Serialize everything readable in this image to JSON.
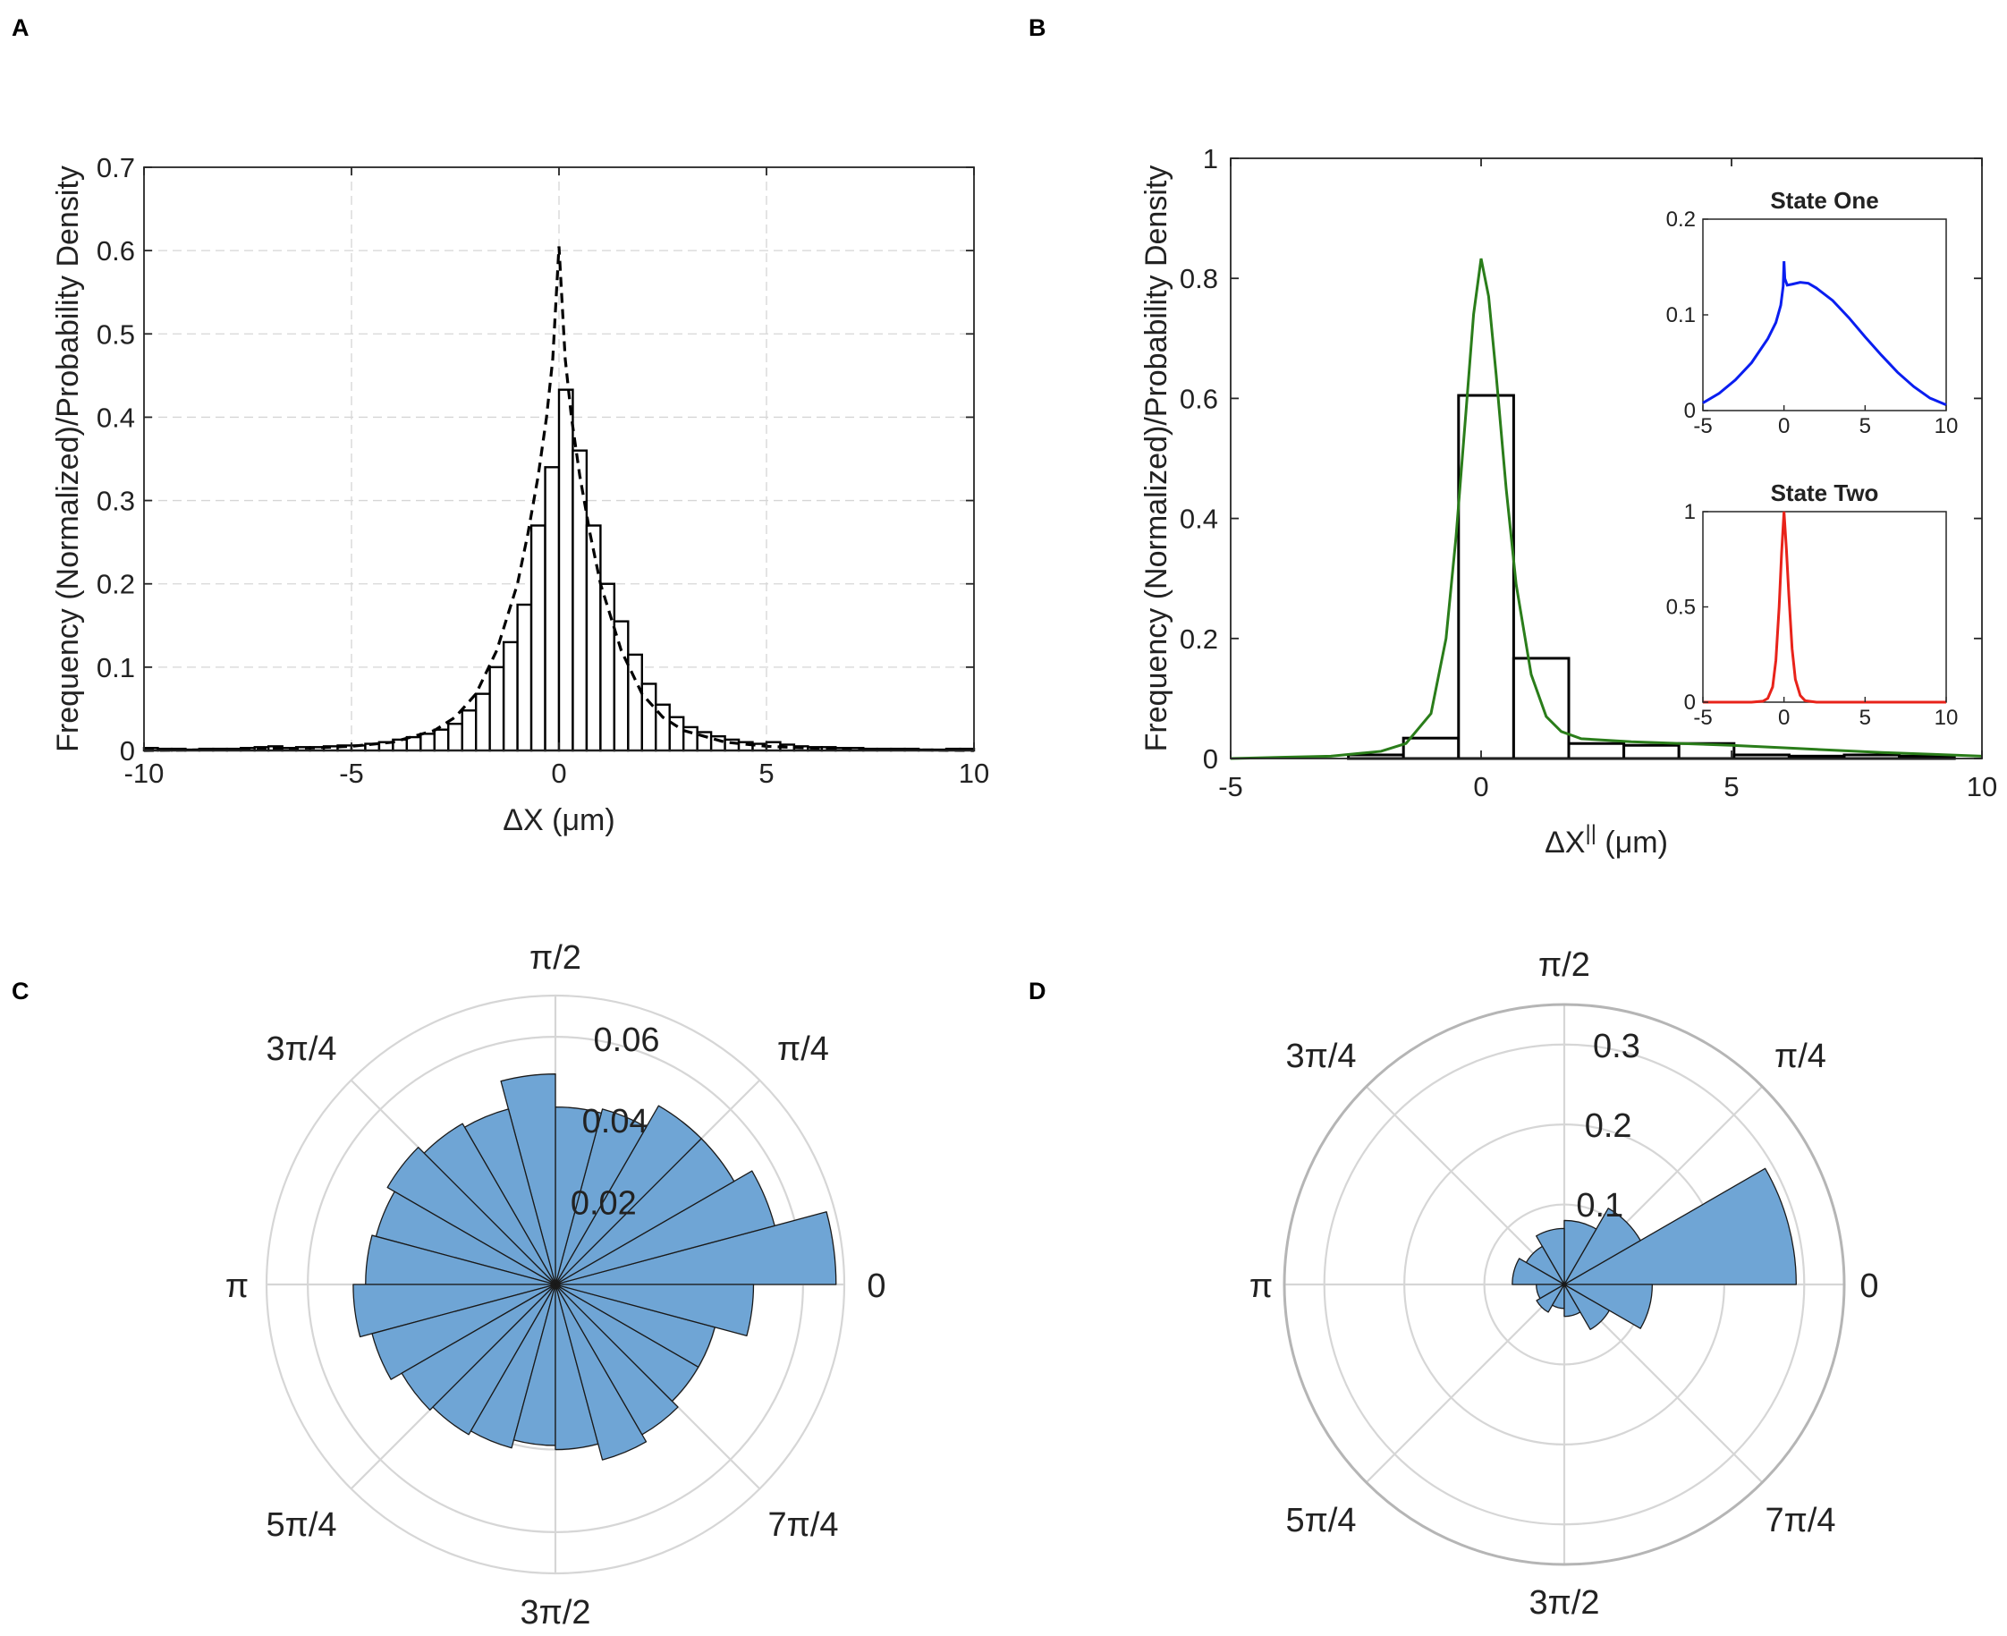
{
  "panel_labels": [
    "A",
    "B",
    "C",
    "D"
  ],
  "colors": {
    "dashed_fit": "#000000",
    "green_fit": "#2a7d1a",
    "state_one": "#0a1ef0",
    "state_two": "#e8231a",
    "rose_fill": "#6fa5d5",
    "grid": "#d6d6d6"
  },
  "chart_data": [
    {
      "panel": "A",
      "type": "bar",
      "title": "",
      "xlabel": "ΔX (μm)",
      "ylabel": "Frequency (Normalized)/Probability Density",
      "xlim": [
        -10,
        10
      ],
      "ylim": [
        0,
        0.7
      ],
      "xticks": [
        -10,
        -5,
        0,
        5,
        10
      ],
      "yticks": [
        0,
        0.1,
        0.2,
        0.3,
        0.4,
        0.5,
        0.6,
        0.7
      ],
      "xtick_labels": [
        "-10",
        "-5",
        "0",
        "5",
        "10"
      ],
      "ytick_labels": [
        "0",
        "0.1",
        "0.2",
        "0.3",
        "0.4",
        "0.5",
        "0.6",
        "0.7"
      ],
      "grid": true,
      "bin_width": 0.333,
      "bins": [
        {
          "x": -10.0,
          "v": 0.003
        },
        {
          "x": -9.667,
          "v": 0.002
        },
        {
          "x": -9.333,
          "v": 0.002
        },
        {
          "x": -9.0,
          "v": 0.001
        },
        {
          "x": -8.667,
          "v": 0.002
        },
        {
          "x": -8.333,
          "v": 0.002
        },
        {
          "x": -8.0,
          "v": 0.002
        },
        {
          "x": -7.667,
          "v": 0.003
        },
        {
          "x": -7.333,
          "v": 0.004
        },
        {
          "x": -7.0,
          "v": 0.005
        },
        {
          "x": -6.667,
          "v": 0.003
        },
        {
          "x": -6.333,
          "v": 0.004
        },
        {
          "x": -6.0,
          "v": 0.004
        },
        {
          "x": -5.667,
          "v": 0.005
        },
        {
          "x": -5.333,
          "v": 0.006
        },
        {
          "x": -5.0,
          "v": 0.006
        },
        {
          "x": -4.667,
          "v": 0.008
        },
        {
          "x": -4.333,
          "v": 0.01
        },
        {
          "x": -4.0,
          "v": 0.013
        },
        {
          "x": -3.667,
          "v": 0.016
        },
        {
          "x": -3.333,
          "v": 0.02
        },
        {
          "x": -3.0,
          "v": 0.025
        },
        {
          "x": -2.667,
          "v": 0.032
        },
        {
          "x": -2.333,
          "v": 0.048
        },
        {
          "x": -2.0,
          "v": 0.068
        },
        {
          "x": -1.667,
          "v": 0.1
        },
        {
          "x": -1.333,
          "v": 0.13
        },
        {
          "x": -1.0,
          "v": 0.175
        },
        {
          "x": -0.667,
          "v": 0.27
        },
        {
          "x": -0.333,
          "v": 0.34
        },
        {
          "x": 0.0,
          "v": 0.433
        },
        {
          "x": 0.333,
          "v": 0.36
        },
        {
          "x": 0.667,
          "v": 0.27
        },
        {
          "x": 1.0,
          "v": 0.2
        },
        {
          "x": 1.333,
          "v": 0.155
        },
        {
          "x": 1.667,
          "v": 0.115
        },
        {
          "x": 2.0,
          "v": 0.08
        },
        {
          "x": 2.333,
          "v": 0.055
        },
        {
          "x": 2.667,
          "v": 0.04
        },
        {
          "x": 3.0,
          "v": 0.028
        },
        {
          "x": 3.333,
          "v": 0.022
        },
        {
          "x": 3.667,
          "v": 0.017
        },
        {
          "x": 4.0,
          "v": 0.013
        },
        {
          "x": 4.333,
          "v": 0.01
        },
        {
          "x": 4.667,
          "v": 0.008
        },
        {
          "x": 5.0,
          "v": 0.01
        },
        {
          "x": 5.333,
          "v": 0.007
        },
        {
          "x": 5.667,
          "v": 0.005
        },
        {
          "x": 6.0,
          "v": 0.004
        },
        {
          "x": 6.333,
          "v": 0.004
        },
        {
          "x": 6.667,
          "v": 0.003
        },
        {
          "x": 7.0,
          "v": 0.003
        },
        {
          "x": 7.333,
          "v": 0.002
        },
        {
          "x": 7.667,
          "v": 0.002
        },
        {
          "x": 8.0,
          "v": 0.002
        },
        {
          "x": 8.333,
          "v": 0.002
        },
        {
          "x": 8.667,
          "v": 0.001
        },
        {
          "x": 9.0,
          "v": 0.001
        },
        {
          "x": 9.333,
          "v": 0.002
        },
        {
          "x": 9.667,
          "v": 0.002
        }
      ],
      "series": [
        {
          "name": "probability density fit",
          "style": "dashed",
          "x": [
            -10,
            -8,
            -6,
            -5,
            -4,
            -3,
            -2.5,
            -2,
            -1.5,
            -1,
            -0.75,
            -0.5,
            -0.3,
            -0.15,
            -0.05,
            0,
            0.05,
            0.15,
            0.3,
            0.5,
            0.75,
            1,
            1.5,
            2,
            2.5,
            3,
            4,
            5,
            6,
            8,
            10
          ],
          "y": [
            0.0,
            0.001,
            0.003,
            0.005,
            0.01,
            0.024,
            0.04,
            0.068,
            0.12,
            0.2,
            0.26,
            0.33,
            0.4,
            0.47,
            0.56,
            0.605,
            0.56,
            0.47,
            0.4,
            0.33,
            0.26,
            0.2,
            0.12,
            0.068,
            0.04,
            0.024,
            0.01,
            0.005,
            0.003,
            0.001,
            0.0
          ]
        }
      ]
    },
    {
      "panel": "B",
      "type": "bar",
      "title": "",
      "xlabel": "ΔX",
      "xlabel_sup": "||",
      "xlabel_unit": "(μm)",
      "ylabel": "Frequency (Normalized)/Probability Density",
      "xlim": [
        -5,
        10
      ],
      "ylim": [
        0,
        1
      ],
      "xticks": [
        -5,
        0,
        5,
        10
      ],
      "yticks": [
        0,
        0.2,
        0.4,
        0.6,
        0.8,
        1
      ],
      "xtick_labels": [
        "-5",
        "0",
        "5",
        "10"
      ],
      "ytick_labels": [
        "0",
        "0.2",
        "0.4",
        "0.6",
        "0.8",
        "1"
      ],
      "grid": false,
      "bin_width": 1.1,
      "bins": [
        {
          "x": -2.65,
          "v": 0.006
        },
        {
          "x": -1.55,
          "v": 0.034
        },
        {
          "x": -0.45,
          "v": 0.605
        },
        {
          "x": 0.65,
          "v": 0.167
        },
        {
          "x": 1.75,
          "v": 0.025
        },
        {
          "x": 2.85,
          "v": 0.022
        },
        {
          "x": 3.95,
          "v": 0.025
        },
        {
          "x": 5.05,
          "v": 0.006
        },
        {
          "x": 6.15,
          "v": 0.004
        },
        {
          "x": 7.25,
          "v": 0.006
        },
        {
          "x": 8.35,
          "v": 0.004
        }
      ],
      "series": [
        {
          "name": "mixture density",
          "color": "#2a7d1a",
          "x": [
            -5,
            -4,
            -3,
            -2,
            -1.5,
            -1,
            -0.7,
            -0.5,
            -0.3,
            -0.15,
            0,
            0.15,
            0.3,
            0.5,
            0.7,
            1,
            1.3,
            1.6,
            2,
            3,
            4,
            5,
            6,
            7,
            8,
            9,
            10
          ],
          "y": [
            0.0,
            0.002,
            0.004,
            0.012,
            0.025,
            0.075,
            0.2,
            0.37,
            0.58,
            0.74,
            0.833,
            0.77,
            0.64,
            0.45,
            0.29,
            0.14,
            0.07,
            0.045,
            0.033,
            0.028,
            0.025,
            0.022,
            0.018,
            0.014,
            0.01,
            0.007,
            0.004
          ]
        }
      ],
      "insets": [
        {
          "title": "State One",
          "type": "line",
          "color": "#0a1ef0",
          "xlim": [
            -5,
            10
          ],
          "ylim": [
            0,
            0.2
          ],
          "xticks": [
            -5,
            0,
            5,
            10
          ],
          "yticks": [
            0,
            0.1,
            0.2
          ],
          "xtick_labels": [
            "-5",
            "0",
            "5",
            "10"
          ],
          "ytick_labels": [
            "0",
            "0.1",
            "0.2"
          ],
          "x": [
            -5,
            -4,
            -3,
            -2,
            -1,
            -0.5,
            -0.2,
            -0.05,
            0,
            0.05,
            0.2,
            0.5,
            1,
            1.5,
            2,
            3,
            4,
            5,
            6,
            7,
            8,
            9,
            10
          ],
          "y": [
            0.008,
            0.018,
            0.032,
            0.05,
            0.075,
            0.092,
            0.11,
            0.13,
            0.156,
            0.138,
            0.131,
            0.132,
            0.134,
            0.133,
            0.128,
            0.115,
            0.097,
            0.077,
            0.058,
            0.04,
            0.025,
            0.013,
            0.006
          ]
        },
        {
          "title": "State Two",
          "type": "line",
          "color": "#e8231a",
          "xlim": [
            -5,
            10
          ],
          "ylim": [
            0,
            1
          ],
          "xticks": [
            -5,
            0,
            5,
            10
          ],
          "yticks": [
            0,
            0.5,
            1
          ],
          "xtick_labels": [
            "-5",
            "0",
            "5",
            "10"
          ],
          "ytick_labels": [
            "0",
            "0.5",
            "1"
          ],
          "x": [
            -5,
            -2,
            -1.3,
            -1,
            -0.7,
            -0.5,
            -0.3,
            -0.15,
            0,
            0.15,
            0.3,
            0.5,
            0.7,
            1,
            1.3,
            2,
            5,
            10
          ],
          "y": [
            0.0,
            0.0,
            0.005,
            0.02,
            0.08,
            0.22,
            0.5,
            0.78,
            1.0,
            0.8,
            0.56,
            0.28,
            0.12,
            0.035,
            0.008,
            0.0,
            0.0,
            0.0
          ]
        }
      ]
    },
    {
      "panel": "C",
      "type": "polar-histogram",
      "rlim": [
        0,
        0.07
      ],
      "rings": [
        0.02,
        0.04,
        0.06
      ],
      "outer_ring": 0.07,
      "rtick_labels": [
        "0.02",
        "0.04",
        "0.06"
      ],
      "angle_labels": [
        "0",
        "π/4",
        "π/2",
        "3π/4",
        "π",
        "5π/4",
        "3π/2",
        "7π/4"
      ],
      "bins": 24,
      "values": [
        0.068,
        0.055,
        0.05,
        0.05,
        0.044,
        0.043,
        0.051,
        0.044,
        0.045,
        0.047,
        0.045,
        0.046,
        0.049,
        0.046,
        0.043,
        0.042,
        0.041,
        0.039,
        0.04,
        0.044,
        0.042,
        0.04,
        0.04,
        0.048
      ]
    },
    {
      "panel": "D",
      "type": "polar-histogram",
      "rlim": [
        0,
        0.35
      ],
      "rings": [
        0.1,
        0.2,
        0.3
      ],
      "outer_ring": 0.35,
      "rtick_labels": [
        "0.1",
        "0.2",
        "0.3"
      ],
      "angle_labels": [
        "0",
        "π/4",
        "π/2",
        "3π/4",
        "π",
        "5π/4",
        "3π/2",
        "7π/4"
      ],
      "bins": 12,
      "values": [
        0.29,
        0.11,
        0.08,
        0.07,
        0.055,
        0.065,
        0.035,
        0.04,
        0.03,
        0.04,
        0.065,
        0.11
      ]
    }
  ]
}
